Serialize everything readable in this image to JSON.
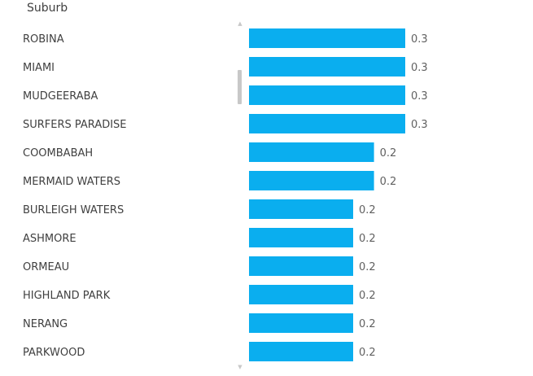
{
  "header": {
    "label": "Suburb"
  },
  "scroll": {
    "up_icon": "arrow-up-icon",
    "down_icon": "arrow-down-icon",
    "up_glyph": "▲",
    "down_glyph": "▼"
  },
  "colors": {
    "bar": "#0aaeef",
    "label": "#404040",
    "value": "#606060"
  },
  "chart_data": {
    "type": "bar",
    "orientation": "horizontal",
    "title": "",
    "xlabel": "",
    "ylabel": "Suburb",
    "categories": [
      "ROBINA",
      "MIAMI",
      "MUDGEERABA",
      "SURFERS PARADISE",
      "COOMBABAH",
      "MERMAID WATERS",
      "BURLEIGH WATERS",
      "ASHMORE",
      "ORMEAU",
      "HIGHLAND PARK",
      "NERANG",
      "PARKWOOD"
    ],
    "values": [
      0.3,
      0.3,
      0.3,
      0.3,
      0.24,
      0.24,
      0.2,
      0.2,
      0.2,
      0.2,
      0.2,
      0.2
    ],
    "value_labels": [
      "0.3",
      "0.3",
      "0.3",
      "0.3",
      "0.2",
      "0.2",
      "0.2",
      "0.2",
      "0.2",
      "0.2",
      "0.2",
      "0.2"
    ],
    "xlim": [
      0,
      0.3
    ],
    "grid": false,
    "legend": "none"
  }
}
